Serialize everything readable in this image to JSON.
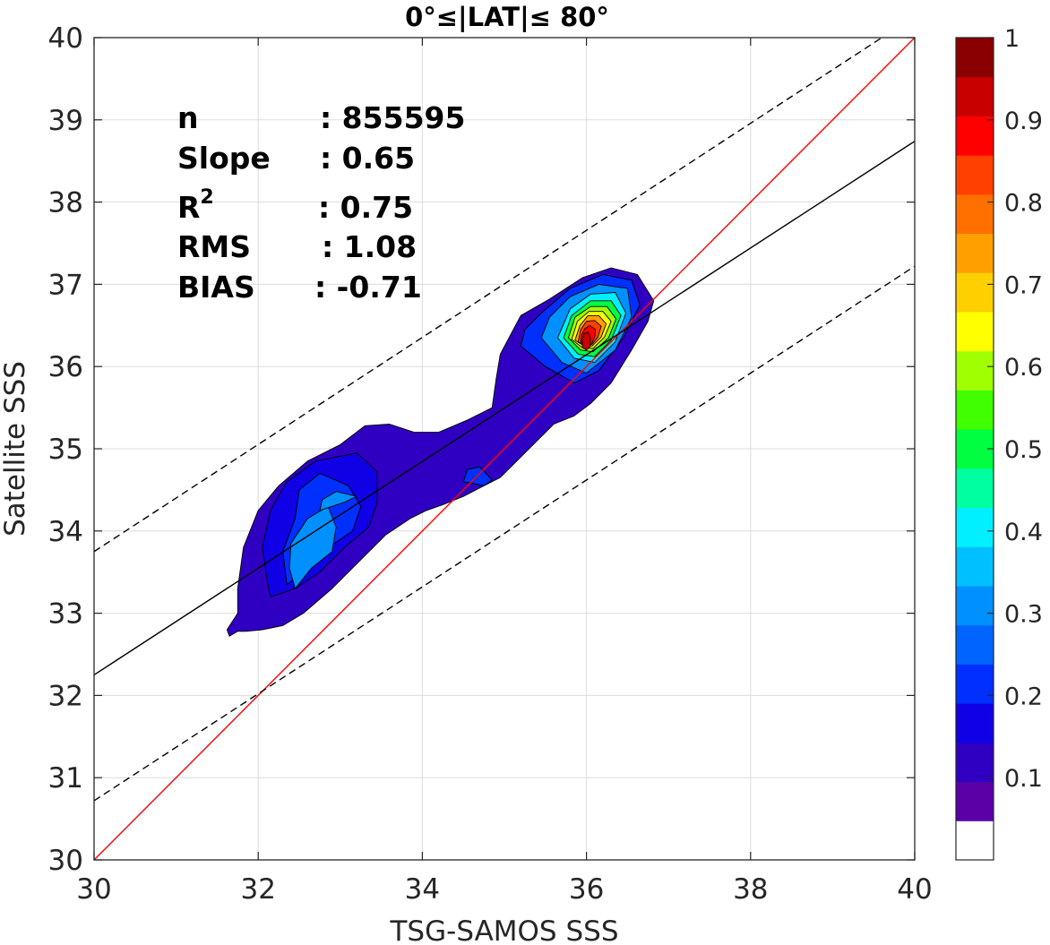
{
  "chart_data": {
    "type": "contour-density",
    "title": "0°≤|LAT|≤ 80°",
    "xlabel": "TSG-SAMOS SSS",
    "ylabel": "Satellite SSS",
    "xlim": [
      30,
      40
    ],
    "ylim": [
      30,
      40
    ],
    "xticks": [
      "30",
      "32",
      "34",
      "36",
      "38",
      "40"
    ],
    "yticks": [
      "30",
      "31",
      "32",
      "33",
      "34",
      "35",
      "36",
      "37",
      "38",
      "39",
      "40"
    ],
    "grid": true,
    "stats": {
      "n_label": "n",
      "n_value": ": 855595",
      "slope_label": "Slope",
      "slope_value": ": 0.65",
      "r2_label": "R",
      "r2_sup": "2",
      "r2_value": ": 0.75",
      "rms_label": "RMS",
      "rms_value": ": 1.08",
      "bias_label": "BIAS",
      "bias_value": ": -0.71"
    },
    "reference_lines": [
      {
        "name": "1:1",
        "color": "#ff0000",
        "style": "solid",
        "x": [
          30,
          40
        ],
        "y": [
          30,
          40
        ]
      },
      {
        "name": "fit",
        "color": "#000000",
        "style": "solid",
        "x": [
          30,
          40
        ],
        "y": [
          32.25,
          38.74
        ]
      },
      {
        "name": "upper",
        "color": "#000000",
        "style": "dashed",
        "x": [
          30,
          39.6
        ],
        "y": [
          33.75,
          40
        ]
      },
      {
        "name": "lower",
        "color": "#000000",
        "style": "dashed",
        "x": [
          30,
          40
        ],
        "y": [
          30.72,
          37.22
        ]
      }
    ],
    "density_peak": {
      "x": 36.0,
      "y": 36.3,
      "value": 1.0
    },
    "colorbar": {
      "ticks": [
        "0.1",
        "0.2",
        "0.3",
        "0.4",
        "0.5",
        "0.6",
        "0.7",
        "0.8",
        "0.9",
        "1"
      ],
      "range": [
        0,
        1
      ],
      "colors": [
        "#ffffff",
        "#5a00a6",
        "#2f00c2",
        "#1000e6",
        "#0030ff",
        "#0064ff",
        "#0090ff",
        "#00c0ff",
        "#00f0ff",
        "#00ffa0",
        "#00ff40",
        "#40ff00",
        "#a0ff00",
        "#ffff00",
        "#ffd000",
        "#ffa000",
        "#ff7000",
        "#ff4000",
        "#ff0000",
        "#c80000",
        "#8a0000"
      ]
    }
  }
}
